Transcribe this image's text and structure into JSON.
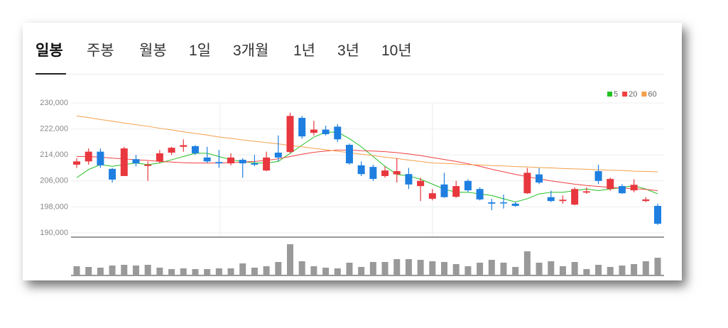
{
  "tabs": [
    "일봉",
    "주봉",
    "월봉",
    "1일",
    "3개월",
    "1년",
    "3년",
    "10년"
  ],
  "chart_data": {
    "type": "candlestick",
    "ylim": [
      190000,
      230000
    ],
    "yticks": [
      {
        "value": 190000,
        "label": "190,000"
      },
      {
        "value": 198000,
        "label": "198,000"
      },
      {
        "value": 206000,
        "label": "206,000"
      },
      {
        "value": 214000,
        "label": "214,000"
      },
      {
        "value": 222000,
        "label": "222,000"
      },
      {
        "value": 230000,
        "label": "230,000"
      }
    ],
    "grid": true,
    "up_color": "#e8373e",
    "down_color": "#1e7fe0",
    "volume_color": "#999999",
    "volume_lim": [
      0,
      50
    ],
    "open": [
      211000,
      212000,
      215000,
      209700,
      207500,
      212700,
      210600,
      212000,
      214700,
      216500,
      216700,
      213200,
      211800,
      211400,
      212500,
      211400,
      209200,
      214700,
      214900,
      225400,
      220800,
      221800,
      222700,
      217100,
      210800,
      210300,
      207500,
      208000,
      208100,
      204400,
      200500,
      204900,
      201100,
      206000,
      203500,
      199400,
      199400,
      199000,
      202200,
      208000,
      201000,
      199800,
      198700,
      202400,
      209000,
      203500,
      204400,
      203100,
      199800,
      198300
    ],
    "high": [
      213000,
      216000,
      216000,
      210000,
      216500,
      214000,
      212000,
      215500,
      216500,
      218800,
      217000,
      216500,
      215500,
      214500,
      213000,
      214000,
      215000,
      220000,
      227000,
      226000,
      224500,
      223000,
      223500,
      217500,
      212000,
      211000,
      210500,
      213000,
      210000,
      207000,
      203500,
      208500,
      206000,
      206500,
      204000,
      200500,
      201800,
      199500,
      210000,
      210000,
      203000,
      201500,
      204000,
      204000,
      211000,
      207000,
      205000,
      206500,
      201000,
      199000
    ],
    "low": [
      210000,
      211000,
      210000,
      205500,
      207500,
      210500,
      206000,
      211500,
      214000,
      215000,
      214000,
      211500,
      210000,
      210800,
      207000,
      210500,
      209000,
      212000,
      214500,
      219000,
      220000,
      220000,
      218000,
      211000,
      207500,
      206000,
      207000,
      205500,
      203500,
      199800,
      200000,
      200800,
      200800,
      202500,
      200000,
      197000,
      197500,
      198000,
      202000,
      205000,
      199500,
      199000,
      198500,
      202000,
      205000,
      203000,
      202000,
      202500,
      199500,
      192500
    ],
    "close": [
      212000,
      215000,
      210800,
      206400,
      216000,
      211400,
      211000,
      214500,
      216200,
      217000,
      214500,
      212000,
      211400,
      213200,
      211400,
      211000,
      213200,
      213200,
      226000,
      219700,
      221800,
      220400,
      218800,
      211400,
      208100,
      206600,
      209200,
      209000,
      204900,
      206000,
      202200,
      201000,
      204400,
      203100,
      200300,
      199000,
      199100,
      198300,
      208500,
      205500,
      199800,
      200200,
      203500,
      202800,
      206000,
      206600,
      202200,
      204800,
      200300,
      192800
    ],
    "volume": [
      13,
      12,
      11,
      14,
      15,
      14,
      15,
      11,
      9,
      10,
      9,
      9,
      10,
      10,
      17,
      11,
      13,
      19,
      44,
      20,
      13,
      11,
      10,
      18,
      12,
      19,
      19,
      23,
      23,
      22,
      20,
      19,
      16,
      13,
      18,
      22,
      18,
      12,
      34,
      18,
      20,
      13,
      19,
      9,
      15,
      12,
      14,
      16,
      20,
      25
    ],
    "series": [
      {
        "name": "5",
        "color": "#22c022",
        "values": [
          207000,
          209500,
          211000,
          210500,
          211000,
          211500,
          211000,
          211500,
          212500,
          213500,
          214500,
          214500,
          213500,
          212500,
          212000,
          211500,
          211500,
          212000,
          214500,
          217000,
          219500,
          221000,
          221000,
          219000,
          216500,
          213500,
          210500,
          208000,
          207500,
          206500,
          205000,
          203500,
          202500,
          202500,
          202000,
          201500,
          200500,
          199500,
          200500,
          202000,
          202500,
          202500,
          203000,
          203500,
          203000,
          203500,
          204000,
          204500,
          203500,
          202000
        ]
      },
      {
        "name": "20",
        "color": "#f04040",
        "values": [
          213500,
          213500,
          213300,
          213000,
          212800,
          212500,
          212300,
          212000,
          211800,
          211600,
          211500,
          211500,
          211500,
          211600,
          211800,
          212000,
          212300,
          212800,
          213500,
          214200,
          214800,
          215200,
          215500,
          215500,
          215300,
          215200,
          215000,
          214700,
          214300,
          213800,
          213200,
          212600,
          212000,
          211300,
          210500,
          209600,
          208800,
          208000,
          207300,
          206600,
          206000,
          205500,
          205000,
          204600,
          204300,
          204000,
          203800,
          203600,
          203400,
          203000
        ]
      },
      {
        "name": "60",
        "color": "#f5a04a",
        "values": [
          226000,
          225500,
          224900,
          224400,
          223800,
          223300,
          222800,
          222200,
          221700,
          221100,
          220600,
          220100,
          219500,
          219100,
          218600,
          218200,
          217800,
          217400,
          216900,
          216500,
          216000,
          215600,
          215100,
          214700,
          214200,
          213800,
          213300,
          212900,
          212400,
          212000,
          211500,
          211400,
          211200,
          211000,
          210900,
          210700,
          210600,
          210400,
          210300,
          210100,
          210000,
          209800,
          209700,
          209600,
          209400,
          209300,
          209200,
          209000,
          208900,
          208800
        ]
      }
    ]
  }
}
